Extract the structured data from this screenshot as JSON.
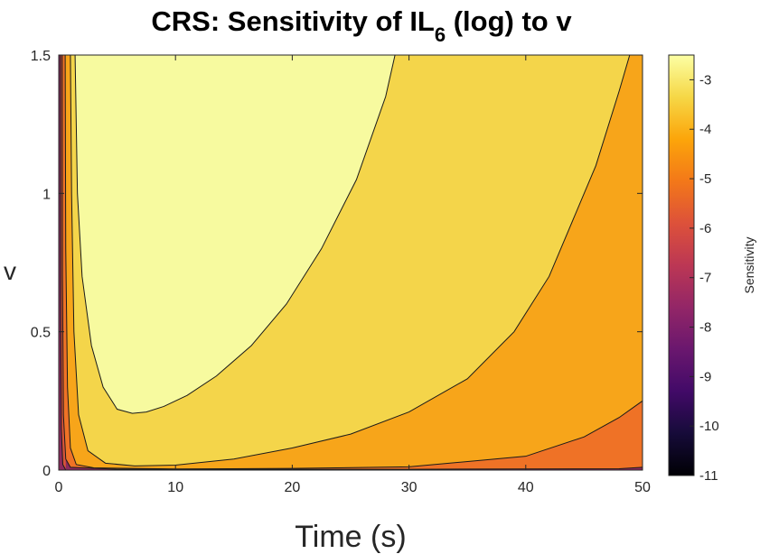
{
  "chart_data": {
    "type": "contour",
    "title_prefix": "CRS: Sensitivity of IL",
    "title_subscript": "6",
    "title_suffix": " (log) to v",
    "xlabel": "Time (s)",
    "ylabel": "v",
    "xlim": [
      0,
      50
    ],
    "ylim": [
      0,
      1.5
    ],
    "xticks": [
      0,
      10,
      20,
      30,
      40,
      50
    ],
    "xtick_labels": [
      "0",
      "10",
      "20",
      "30",
      "40",
      "50"
    ],
    "yticks": [
      0,
      0.5,
      1,
      1.5
    ],
    "ytick_labels": [
      "0",
      "0.5",
      "1",
      "1.5"
    ],
    "colorbar": {
      "label": "Sensitivity",
      "range": [
        -11,
        -2.5
      ],
      "ticks": [
        -3,
        -4,
        -5,
        -6,
        -7,
        -8,
        -9,
        -10,
        -11
      ],
      "tick_labels": [
        "-3",
        "-4",
        "-5",
        "-6",
        "-7",
        "-8",
        "-9",
        "-10",
        "-11"
      ],
      "colormap": "inferno"
    },
    "contour_levels": [
      -3,
      -3.5,
      -4,
      -4.5,
      -5,
      -6
    ],
    "regions": [
      {
        "level_range": "> -3",
        "color": "#f7fa9f"
      },
      {
        "level_range": "-3.5 to -3",
        "color": "#f4d54a"
      },
      {
        "level_range": "-4 to -3.5",
        "color": "#f7a51a"
      },
      {
        "level_range": "-4.5 to -4",
        "color": "#ef7226"
      },
      {
        "level_range": "-5 to -4.5",
        "color": "#d75439"
      },
      {
        "level_range": "< -5",
        "color": "#8c2a5c"
      }
    ],
    "contours": [
      {
        "level": -3,
        "points": [
          [
            1.4,
            1.5
          ],
          [
            1.6,
            1.0
          ],
          [
            2.0,
            0.7
          ],
          [
            2.8,
            0.45
          ],
          [
            3.8,
            0.3
          ],
          [
            5.0,
            0.22
          ],
          [
            6.3,
            0.205
          ],
          [
            7.5,
            0.21
          ],
          [
            9.0,
            0.23
          ],
          [
            11.0,
            0.27
          ],
          [
            13.5,
            0.34
          ],
          [
            16.5,
            0.45
          ],
          [
            19.5,
            0.6
          ],
          [
            22.5,
            0.8
          ],
          [
            25.5,
            1.05
          ],
          [
            28.0,
            1.35
          ],
          [
            28.8,
            1.5
          ]
        ]
      },
      {
        "level": -3.5,
        "points": [
          [
            1.0,
            1.5
          ],
          [
            1.1,
            1.0
          ],
          [
            1.3,
            0.5
          ],
          [
            1.7,
            0.2
          ],
          [
            2.5,
            0.07
          ],
          [
            4.0,
            0.025
          ],
          [
            6.5,
            0.015
          ],
          [
            10.0,
            0.018
          ],
          [
            15.0,
            0.04
          ],
          [
            20.0,
            0.08
          ],
          [
            25.0,
            0.13
          ],
          [
            30.0,
            0.21
          ],
          [
            35.0,
            0.33
          ],
          [
            39.0,
            0.5
          ],
          [
            42.0,
            0.7
          ],
          [
            44.0,
            0.9
          ],
          [
            46.0,
            1.1
          ],
          [
            48.0,
            1.37
          ],
          [
            48.9,
            1.5
          ]
        ]
      },
      {
        "level": -4,
        "points": [
          [
            0.55,
            1.5
          ],
          [
            0.6,
            0.8
          ],
          [
            0.75,
            0.3
          ],
          [
            1.0,
            0.08
          ],
          [
            1.5,
            0.02
          ],
          [
            3.0,
            0.008
          ],
          [
            10.0,
            0.004
          ],
          [
            20.0,
            0.006
          ],
          [
            30.0,
            0.012
          ],
          [
            40.0,
            0.05
          ],
          [
            45.0,
            0.12
          ],
          [
            48.0,
            0.19
          ],
          [
            50.0,
            0.25
          ]
        ]
      },
      {
        "level": -4.5,
        "points": [
          [
            0.3,
            1.5
          ],
          [
            0.32,
            0.7
          ],
          [
            0.4,
            0.2
          ],
          [
            0.6,
            0.04
          ],
          [
            1.0,
            0.01
          ],
          [
            5.0,
            0.003
          ],
          [
            30.0,
            0.003
          ],
          [
            48.0,
            0.005
          ],
          [
            50.0,
            0.01
          ]
        ]
      },
      {
        "level": -5,
        "points": [
          [
            0.15,
            1.5
          ],
          [
            0.17,
            0.6
          ],
          [
            0.22,
            0.15
          ],
          [
            0.35,
            0.02
          ],
          [
            0.6,
            0.0
          ]
        ]
      }
    ]
  }
}
